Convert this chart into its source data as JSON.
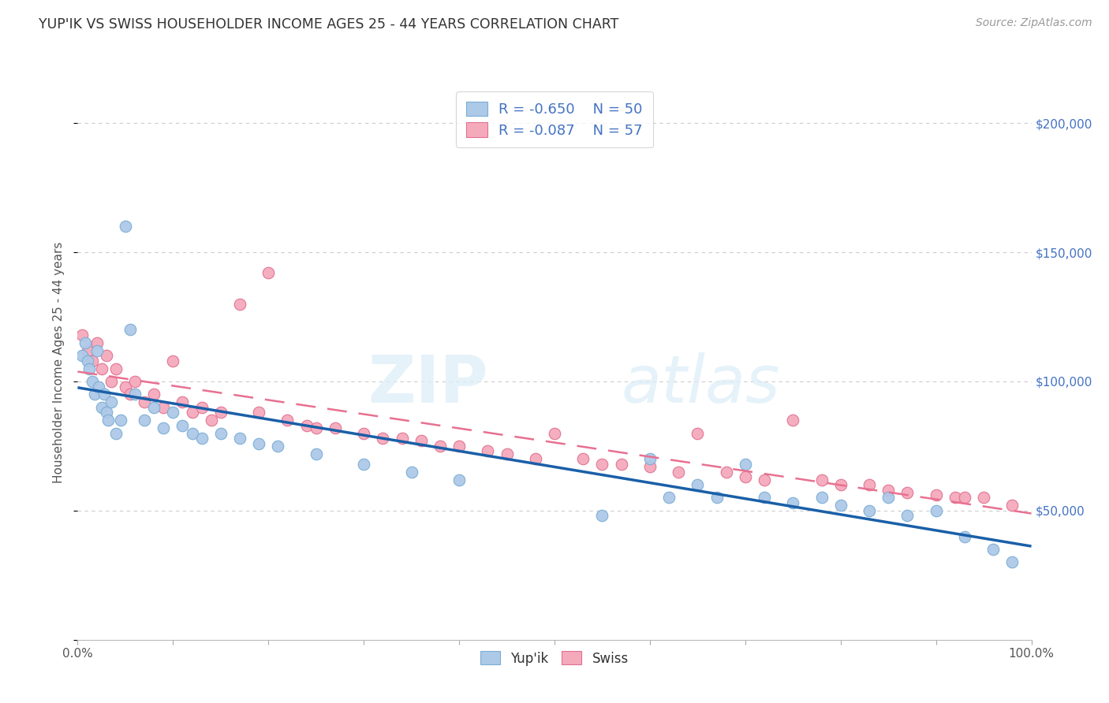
{
  "title": "YUP'IK VS SWISS HOUSEHOLDER INCOME AGES 25 - 44 YEARS CORRELATION CHART",
  "source": "Source: ZipAtlas.com",
  "ylabel": "Householder Income Ages 25 - 44 years",
  "xlim": [
    0,
    100
  ],
  "ylim": [
    0,
    215000
  ],
  "yticks": [
    0,
    50000,
    100000,
    150000,
    200000
  ],
  "ytick_labels": [
    "",
    "$50,000",
    "$100,000",
    "$150,000",
    "$200,000"
  ],
  "xticks": [
    0,
    10,
    20,
    30,
    40,
    50,
    60,
    70,
    80,
    90,
    100
  ],
  "xtick_labels": [
    "0.0%",
    "",
    "",
    "",
    "",
    "",
    "",
    "",
    "",
    "",
    "100.0%"
  ],
  "legend_r1": "R = -0.650",
  "legend_n1": "N = 50",
  "legend_r2": "R = -0.087",
  "legend_n2": "N = 57",
  "watermark_zip": "ZIP",
  "watermark_atlas": "atlas",
  "blue_color": "#adc9e8",
  "blue_edge": "#7aadd4",
  "pink_color": "#f5aabc",
  "pink_edge": "#e07090",
  "trend_blue": "#1a5fa8",
  "trend_pink": "#e87090",
  "yupik_x": [
    0.5,
    0.8,
    1.0,
    1.2,
    1.5,
    1.8,
    2.0,
    2.2,
    2.5,
    2.8,
    3.0,
    3.2,
    3.5,
    4.0,
    4.5,
    5.0,
    5.5,
    6.0,
    7.0,
    8.0,
    9.0,
    10.0,
    11.0,
    12.0,
    13.0,
    15.0,
    17.0,
    19.0,
    21.0,
    25.0,
    30.0,
    35.0,
    40.0,
    55.0,
    60.0,
    62.0,
    65.0,
    67.0,
    70.0,
    72.0,
    75.0,
    78.0,
    80.0,
    83.0,
    85.0,
    87.0,
    90.0,
    93.0,
    96.0,
    98.0
  ],
  "yupik_y": [
    110000,
    115000,
    108000,
    105000,
    100000,
    95000,
    112000,
    98000,
    90000,
    95000,
    88000,
    85000,
    92000,
    80000,
    85000,
    160000,
    120000,
    95000,
    85000,
    90000,
    82000,
    88000,
    83000,
    80000,
    78000,
    80000,
    78000,
    76000,
    75000,
    72000,
    68000,
    65000,
    62000,
    48000,
    70000,
    55000,
    60000,
    55000,
    68000,
    55000,
    53000,
    55000,
    52000,
    50000,
    55000,
    48000,
    50000,
    40000,
    35000,
    30000
  ],
  "swiss_x": [
    0.5,
    1.0,
    1.5,
    2.0,
    2.5,
    3.0,
    3.5,
    4.0,
    5.0,
    5.5,
    6.0,
    7.0,
    8.0,
    9.0,
    10.0,
    11.0,
    12.0,
    13.0,
    14.0,
    15.0,
    17.0,
    19.0,
    20.0,
    22.0,
    24.0,
    25.0,
    27.0,
    30.0,
    32.0,
    34.0,
    36.0,
    38.0,
    40.0,
    43.0,
    45.0,
    48.0,
    50.0,
    53.0,
    55.0,
    57.0,
    60.0,
    63.0,
    65.0,
    68.0,
    70.0,
    72.0,
    75.0,
    78.0,
    80.0,
    83.0,
    85.0,
    87.0,
    90.0,
    92.0,
    93.0,
    95.0,
    98.0
  ],
  "swiss_y": [
    118000,
    112000,
    108000,
    115000,
    105000,
    110000,
    100000,
    105000,
    98000,
    95000,
    100000,
    92000,
    95000,
    90000,
    108000,
    92000,
    88000,
    90000,
    85000,
    88000,
    130000,
    88000,
    142000,
    85000,
    83000,
    82000,
    82000,
    80000,
    78000,
    78000,
    77000,
    75000,
    75000,
    73000,
    72000,
    70000,
    80000,
    70000,
    68000,
    68000,
    67000,
    65000,
    80000,
    65000,
    63000,
    62000,
    85000,
    62000,
    60000,
    60000,
    58000,
    57000,
    56000,
    55000,
    55000,
    55000,
    52000
  ]
}
